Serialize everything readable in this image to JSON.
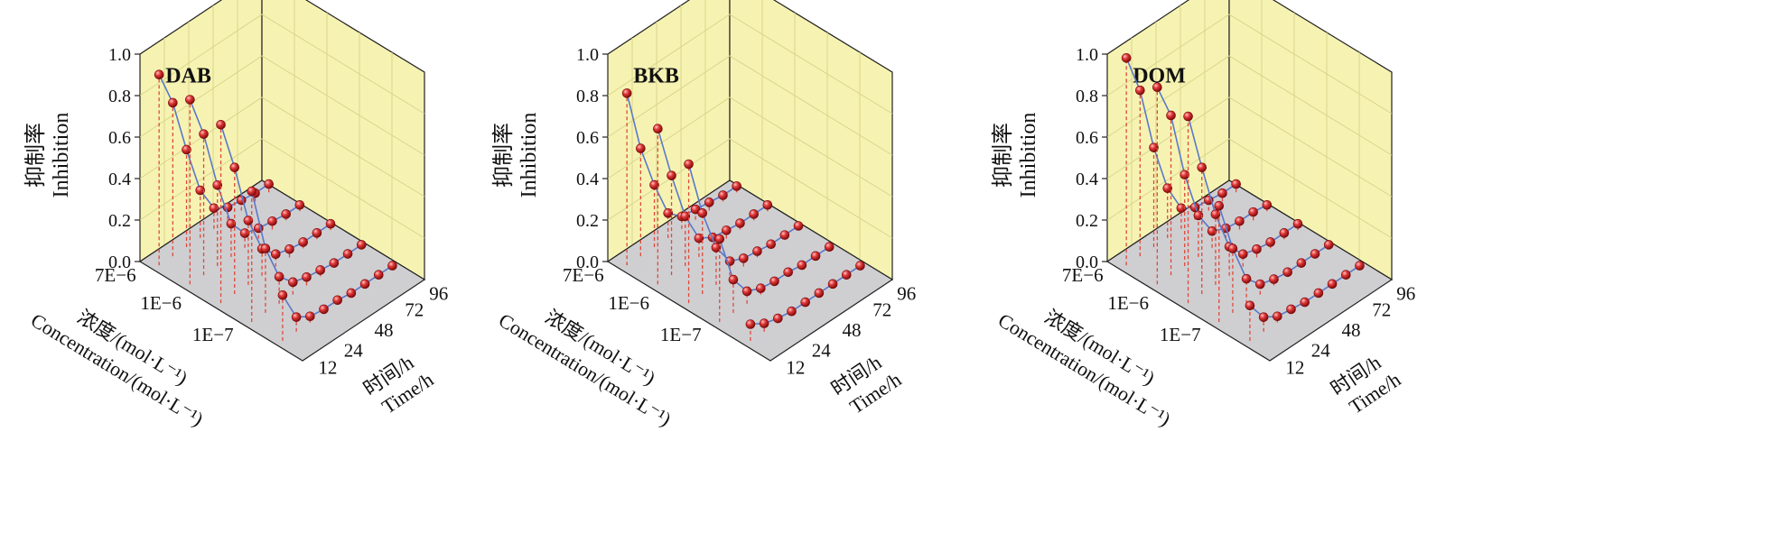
{
  "figure": {
    "colors": {
      "back_wall": "#f6f3b2",
      "grid_line": "#d9d58c",
      "floor": "#cfcfd2",
      "axis": "#222222",
      "curve": "#5a78c8",
      "drop_line": "#e0483a",
      "point_fill": "#cc1c1c",
      "point_highlight": "#ff9a9a"
    }
  },
  "chart_data": [
    {
      "type": "scatter",
      "title": "DAB",
      "zlabel_cn": "抑制率",
      "zlabel_en": "Inhibition",
      "zlim": [
        0,
        1.0
      ],
      "zticks": [
        "0.0",
        "0.2",
        "0.4",
        "0.6",
        "0.8",
        "1.0"
      ],
      "xlabel_cn": "浓度/(mol·L⁻¹)",
      "xlabel_en": "Concentration/(mol·L⁻¹)",
      "xticks": [
        "7E−6",
        "1E−6",
        "1E−7"
      ],
      "ylabel_cn": "时间/h",
      "ylabel_en": "Time/h",
      "yticks": [
        "12",
        "24",
        "48",
        "72",
        "96"
      ],
      "time": [
        12,
        24,
        36,
        48,
        60,
        72,
        84,
        96,
        108
      ],
      "series": [
        {
          "values": [
            0.22,
            0.07,
            0.03,
            0.02,
            0.02,
            0.01,
            0.01,
            0.01,
            0.01
          ]
        },
        {
          "values": [
            0.63,
            0.31,
            0.13,
            0.06,
            0.04,
            0.03,
            0.02,
            0.02,
            0.02
          ]
        },
        {
          "values": [
            0.86,
            0.61,
            0.31,
            0.13,
            0.06,
            0.04,
            0.03,
            0.03,
            0.03
          ]
        },
        {
          "values": [
            0.89,
            0.68,
            0.39,
            0.16,
            0.07,
            0.05,
            0.04,
            0.03,
            0.03
          ]
        },
        {
          "values": [
            0.92,
            0.74,
            0.47,
            0.23,
            0.1,
            0.06,
            0.05,
            0.04,
            0.04
          ]
        }
      ]
    },
    {
      "type": "scatter",
      "title": "BKB",
      "zlabel_cn": "抑制率",
      "zlabel_en": "Inhibition",
      "zlim": [
        0,
        1.0
      ],
      "zticks": [
        "0.0",
        "0.2",
        "0.4",
        "0.6",
        "0.8",
        "1.0"
      ],
      "xlabel_cn": "浓度/(mol·L⁻¹)",
      "xlabel_en": "Concentration/(mol·L⁻¹)",
      "xticks": [
        "7E−6",
        "1E−6",
        "1E−7"
      ],
      "ylabel_cn": "时间/h",
      "ylabel_en": "Time/h",
      "yticks": [
        "12",
        "24",
        "48",
        "72",
        "96"
      ],
      "time": [
        12,
        24,
        36,
        48,
        60,
        72,
        84,
        96,
        108
      ],
      "series": [
        {
          "values": [
            0.08,
            0.04,
            0.02,
            0.01,
            0.01,
            0.01,
            0.01,
            0.01,
            0.01
          ]
        },
        {
          "values": [
            0.4,
            0.16,
            0.06,
            0.03,
            0.02,
            0.02,
            0.01,
            0.01,
            0.01
          ]
        },
        {
          "values": [
            0.67,
            0.39,
            0.18,
            0.07,
            0.04,
            0.03,
            0.02,
            0.02,
            0.02
          ]
        },
        {
          "values": [
            0.75,
            0.48,
            0.24,
            0.09,
            0.05,
            0.04,
            0.03,
            0.03,
            0.03
          ]
        },
        {
          "values": [
            0.83,
            0.52,
            0.3,
            0.12,
            0.06,
            0.05,
            0.04,
            0.03,
            0.03
          ]
        }
      ]
    },
    {
      "type": "scatter",
      "title": "DOM",
      "zlabel_cn": "抑制率",
      "zlabel_en": "Inhibition",
      "zlim": [
        0,
        1.0
      ],
      "zticks": [
        "0.0",
        "0.2",
        "0.4",
        "0.6",
        "0.8",
        "1.0"
      ],
      "xlabel_cn": "浓度/(mol·L⁻¹)",
      "xlabel_en": "Concentration/(mol·L⁻¹)",
      "xticks": [
        "7E−6",
        "1E−6",
        "1E−7"
      ],
      "ylabel_cn": "时间/h",
      "ylabel_en": "Time/h",
      "yticks": [
        "12",
        "24",
        "48",
        "72",
        "96"
      ],
      "time": [
        12,
        24,
        36,
        48,
        60,
        72,
        84,
        96,
        108
      ],
      "series": [
        {
          "values": [
            0.17,
            0.07,
            0.03,
            0.02,
            0.01,
            0.01,
            0.01,
            0.01,
            0.01
          ]
        },
        {
          "values": [
            0.56,
            0.31,
            0.12,
            0.05,
            0.03,
            0.02,
            0.02,
            0.02,
            0.02
          ]
        },
        {
          "values": [
            0.9,
            0.61,
            0.34,
            0.14,
            0.06,
            0.04,
            0.03,
            0.03,
            0.03
          ]
        },
        {
          "values": [
            0.95,
            0.77,
            0.44,
            0.2,
            0.08,
            0.05,
            0.04,
            0.04,
            0.03
          ]
        },
        {
          "values": [
            1.0,
            0.8,
            0.48,
            0.24,
            0.1,
            0.06,
            0.05,
            0.04,
            0.04
          ]
        }
      ]
    }
  ]
}
